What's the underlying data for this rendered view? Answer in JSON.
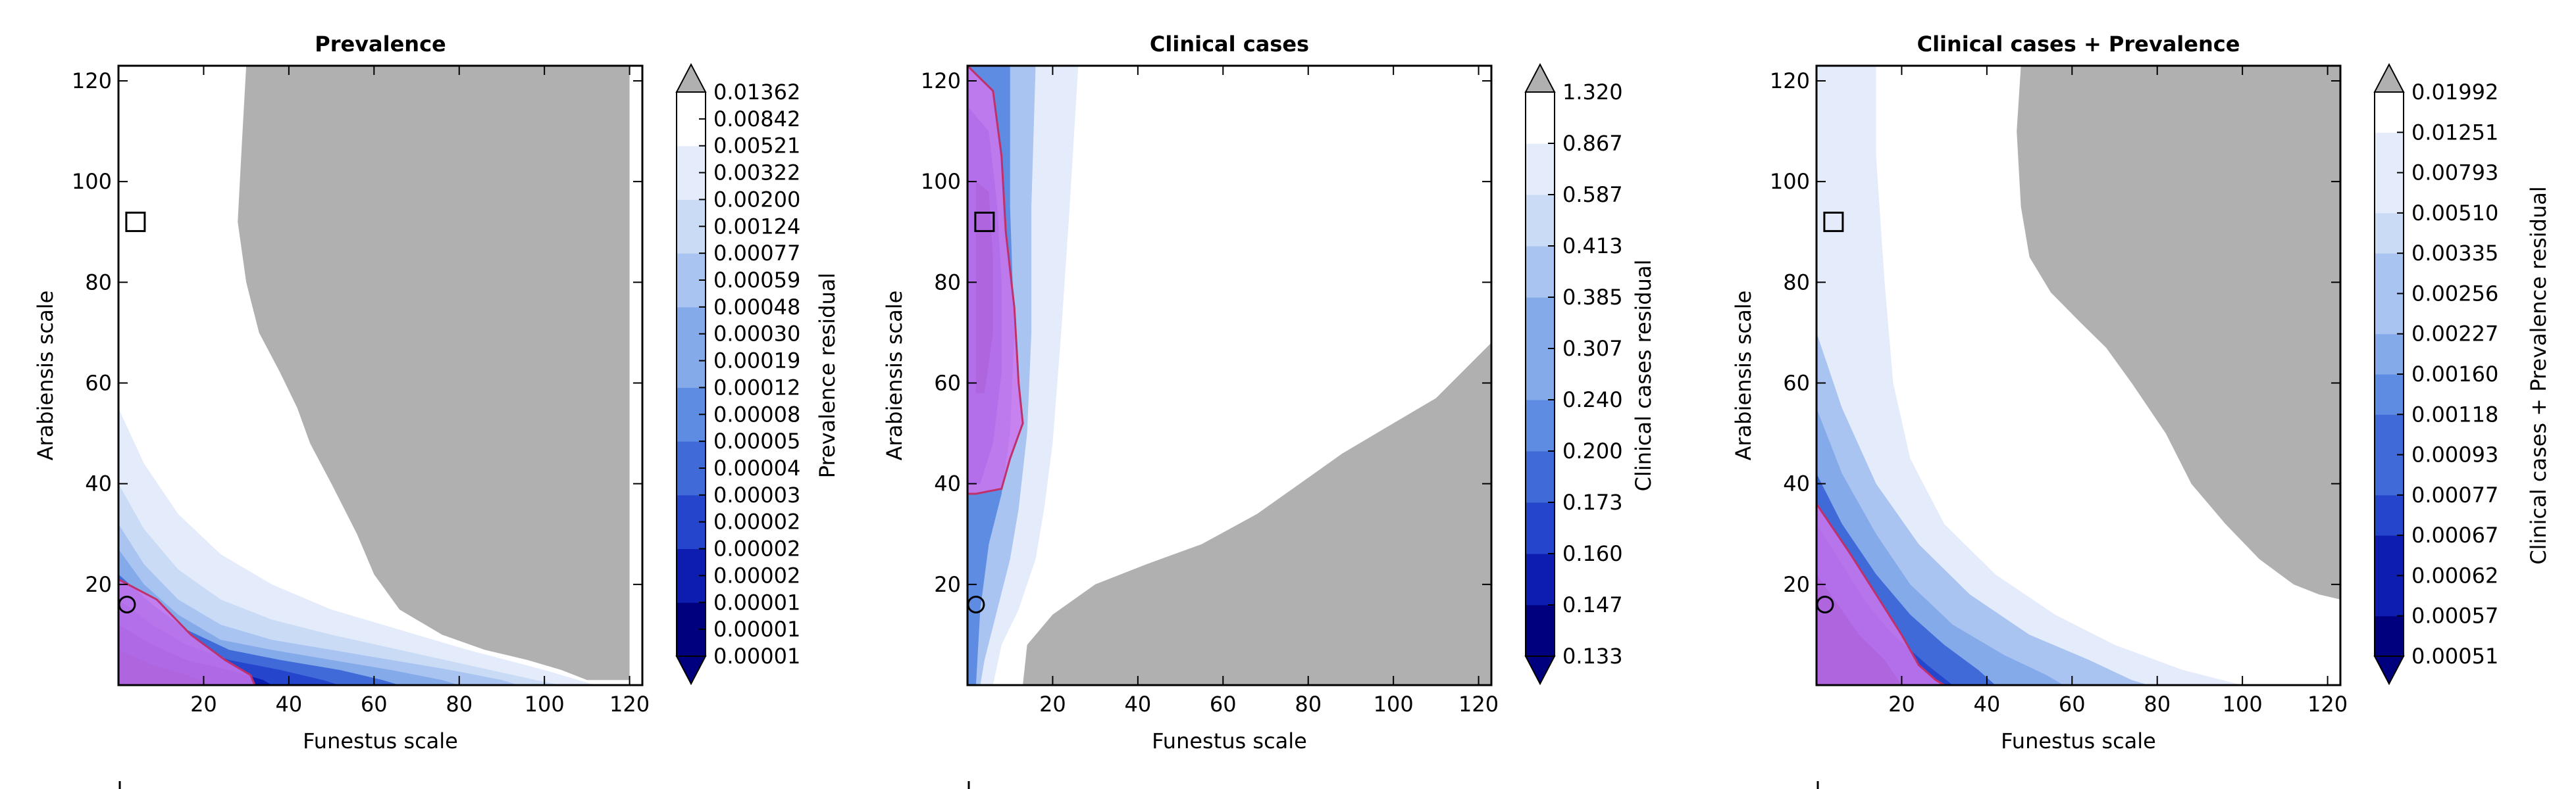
{
  "chart_data": [
    {
      "type": "contour",
      "title": "Prevalence",
      "xlabel": "Funestus scale",
      "ylabel": "Arabiensis scale",
      "xlim": [
        0,
        123
      ],
      "ylim": [
        0,
        123
      ],
      "x_ticks": [
        20,
        40,
        60,
        80,
        100,
        120
      ],
      "y_ticks": [
        20,
        40,
        60,
        80,
        100,
        120
      ],
      "colorbar_label": "Prevalence residual",
      "colorbar_levels": [
        "0.00001",
        "0.00001",
        "0.00001",
        "0.00002",
        "0.00002",
        "0.00002",
        "0.00003",
        "0.00004",
        "0.00005",
        "0.00008",
        "0.00012",
        "0.00019",
        "0.00030",
        "0.00048",
        "0.00059",
        "0.00077",
        "0.00124",
        "0.00200",
        "0.00322",
        "0.00521",
        "0.00842",
        "0.01362"
      ],
      "square_marker": [
        4,
        92
      ],
      "circle_marker": [
        2,
        16
      ],
      "grey_boundary": [
        [
          120,
          123
        ],
        [
          30,
          123
        ],
        [
          29,
          108
        ],
        [
          28,
          92
        ],
        [
          30,
          80
        ],
        [
          33,
          70
        ],
        [
          38,
          62
        ],
        [
          42,
          55
        ],
        [
          45,
          48
        ],
        [
          50,
          40
        ],
        [
          56,
          30
        ],
        [
          60,
          22
        ],
        [
          66,
          15
        ],
        [
          76,
          10
        ],
        [
          86,
          7
        ],
        [
          96,
          5
        ],
        [
          104,
          3
        ],
        [
          110,
          1
        ],
        [
          120,
          1
        ]
      ],
      "purple_boundary": [
        [
          0,
          21
        ],
        [
          9,
          17
        ],
        [
          17,
          10
        ],
        [
          25,
          5
        ],
        [
          31,
          2
        ],
        [
          32,
          0
        ],
        [
          0,
          0
        ]
      ],
      "fill_bands": [
        [
          [
            0,
            55
          ],
          [
            6,
            44
          ],
          [
            14,
            34
          ],
          [
            24,
            26
          ],
          [
            36,
            20
          ],
          [
            50,
            15
          ],
          [
            66,
            11
          ],
          [
            82,
            7
          ],
          [
            100,
            3
          ],
          [
            112,
            0
          ],
          [
            0,
            0
          ]
        ],
        [
          [
            0,
            40
          ],
          [
            6,
            31
          ],
          [
            14,
            23
          ],
          [
            24,
            17
          ],
          [
            36,
            13
          ],
          [
            50,
            10
          ],
          [
            66,
            7
          ],
          [
            82,
            4
          ],
          [
            98,
            1
          ],
          [
            104,
            0
          ],
          [
            0,
            0
          ]
        ],
        [
          [
            0,
            32
          ],
          [
            6,
            24
          ],
          [
            14,
            17
          ],
          [
            24,
            12
          ],
          [
            36,
            9
          ],
          [
            50,
            7
          ],
          [
            64,
            5
          ],
          [
            78,
            3
          ],
          [
            90,
            1
          ],
          [
            94,
            0
          ],
          [
            0,
            0
          ]
        ],
        [
          [
            0,
            27
          ],
          [
            6,
            20
          ],
          [
            14,
            14
          ],
          [
            24,
            9
          ],
          [
            36,
            7
          ],
          [
            50,
            5
          ],
          [
            64,
            3
          ],
          [
            76,
            1
          ],
          [
            80,
            0
          ],
          [
            0,
            0
          ]
        ],
        [
          [
            0,
            22
          ],
          [
            8,
            16
          ],
          [
            16,
            11
          ],
          [
            26,
            7
          ],
          [
            38,
            5
          ],
          [
            52,
            3
          ],
          [
            62,
            1
          ],
          [
            66,
            0
          ],
          [
            0,
            0
          ]
        ],
        [
          [
            0,
            17
          ],
          [
            8,
            12
          ],
          [
            16,
            8
          ],
          [
            26,
            5
          ],
          [
            38,
            3
          ],
          [
            48,
            1
          ],
          [
            52,
            0
          ],
          [
            0,
            0
          ]
        ],
        [
          [
            0,
            12
          ],
          [
            8,
            8
          ],
          [
            16,
            5
          ],
          [
            26,
            3
          ],
          [
            34,
            1
          ],
          [
            36,
            0
          ],
          [
            0,
            0
          ]
        ],
        [
          [
            0,
            7
          ],
          [
            8,
            4
          ],
          [
            16,
            2
          ],
          [
            22,
            0
          ],
          [
            0,
            0
          ]
        ]
      ]
    },
    {
      "type": "contour",
      "title": "Clinical cases",
      "xlabel": "Funestus scale",
      "ylabel": "Arabiensis scale",
      "xlim": [
        0,
        123
      ],
      "ylim": [
        0,
        123
      ],
      "x_ticks": [
        20,
        40,
        60,
        80,
        100,
        120
      ],
      "y_ticks": [
        20,
        40,
        60,
        80,
        100,
        120
      ],
      "colorbar_label": "Clinical cases residual",
      "colorbar_levels": [
        "0.133",
        "0.147",
        "0.160",
        "0.173",
        "0.200",
        "0.240",
        "0.307",
        "0.385",
        "0.413",
        "0.587",
        "0.867",
        "1.320"
      ],
      "square_marker": [
        4,
        92
      ],
      "circle_marker": [
        2,
        16
      ],
      "grey_boundary": [
        [
          13,
          0
        ],
        [
          14,
          8
        ],
        [
          20,
          14
        ],
        [
          30,
          20
        ],
        [
          42,
          24
        ],
        [
          55,
          28
        ],
        [
          68,
          34
        ],
        [
          78,
          40
        ],
        [
          88,
          46
        ],
        [
          98,
          51
        ],
        [
          110,
          57
        ],
        [
          123,
          68
        ],
        [
          123,
          0
        ]
      ],
      "purple_boundary": [
        [
          0,
          123
        ],
        [
          6,
          118
        ],
        [
          8,
          105
        ],
        [
          9,
          90
        ],
        [
          11,
          75
        ],
        [
          12,
          60
        ],
        [
          13,
          52
        ],
        [
          10,
          45
        ],
        [
          8,
          39
        ],
        [
          2,
          38
        ],
        [
          0,
          38
        ]
      ],
      "fill_bands": [
        [
          [
            0,
            123
          ],
          [
            26,
            123
          ],
          [
            24,
            95
          ],
          [
            22,
            70
          ],
          [
            20,
            48
          ],
          [
            18,
            35
          ],
          [
            16,
            25
          ],
          [
            12,
            15
          ],
          [
            8,
            8
          ],
          [
            6,
            0
          ],
          [
            0,
            0
          ]
        ],
        [
          [
            0,
            123
          ],
          [
            16,
            123
          ],
          [
            15,
            95
          ],
          [
            15,
            70
          ],
          [
            14,
            50
          ],
          [
            12,
            35
          ],
          [
            10,
            25
          ],
          [
            7,
            15
          ],
          [
            4,
            5
          ],
          [
            3,
            0
          ],
          [
            0,
            0
          ]
        ],
        [
          [
            0,
            123
          ],
          [
            10,
            123
          ],
          [
            10,
            95
          ],
          [
            11,
            70
          ],
          [
            10,
            50
          ],
          [
            8,
            38
          ],
          [
            5,
            28
          ],
          [
            3,
            15
          ],
          [
            2,
            0
          ],
          [
            0,
            0
          ]
        ],
        [
          [
            0,
            115
          ],
          [
            5,
            110
          ],
          [
            7,
            95
          ],
          [
            8,
            80
          ],
          [
            8,
            62
          ],
          [
            6,
            48
          ],
          [
            3,
            40
          ],
          [
            0,
            40
          ]
        ],
        [
          [
            2,
            100
          ],
          [
            5,
            98
          ],
          [
            6,
            85
          ],
          [
            6,
            70
          ],
          [
            4,
            58
          ],
          [
            2,
            58
          ]
        ]
      ]
    },
    {
      "type": "contour",
      "title": "Clinical cases + Prevalence",
      "xlabel": "Funestus scale",
      "ylabel": "Arabiensis scale",
      "xlim": [
        0,
        123
      ],
      "ylim": [
        0,
        123
      ],
      "x_ticks": [
        20,
        40,
        60,
        80,
        100,
        120
      ],
      "y_ticks": [
        20,
        40,
        60,
        80,
        100,
        120
      ],
      "colorbar_label": "Clinical cases + Prevalence residual",
      "colorbar_levels": [
        "0.00051",
        "0.00057",
        "0.00062",
        "0.00067",
        "0.00077",
        "0.00093",
        "0.00118",
        "0.00160",
        "0.00227",
        "0.00256",
        "0.00335",
        "0.00510",
        "0.00793",
        "0.01251",
        "0.01992"
      ],
      "square_marker": [
        4,
        92
      ],
      "circle_marker": [
        2,
        16
      ],
      "grey_boundary": [
        [
          123,
          123
        ],
        [
          48,
          123
        ],
        [
          47,
          110
        ],
        [
          48,
          95
        ],
        [
          50,
          85
        ],
        [
          55,
          78
        ],
        [
          62,
          72
        ],
        [
          68,
          67
        ],
        [
          74,
          60
        ],
        [
          82,
          50
        ],
        [
          88,
          40
        ],
        [
          96,
          32
        ],
        [
          104,
          25
        ],
        [
          112,
          20
        ],
        [
          118,
          18
        ],
        [
          123,
          17
        ]
      ],
      "purple_boundary": [
        [
          0,
          36
        ],
        [
          8,
          26
        ],
        [
          14,
          18
        ],
        [
          20,
          10
        ],
        [
          24,
          4
        ],
        [
          28,
          1
        ],
        [
          30,
          0
        ],
        [
          0,
          0
        ]
      ],
      "fill_bands": [
        [
          [
            0,
            123
          ],
          [
            14,
            123
          ],
          [
            14,
            105
          ],
          [
            16,
            80
          ],
          [
            18,
            60
          ],
          [
            22,
            45
          ],
          [
            30,
            32
          ],
          [
            42,
            22
          ],
          [
            56,
            14
          ],
          [
            70,
            8
          ],
          [
            86,
            3
          ],
          [
            100,
            0
          ],
          [
            0,
            0
          ]
        ],
        [
          [
            0,
            70
          ],
          [
            6,
            55
          ],
          [
            14,
            40
          ],
          [
            24,
            28
          ],
          [
            36,
            18
          ],
          [
            50,
            10
          ],
          [
            64,
            5
          ],
          [
            74,
            1
          ],
          [
            78,
            0
          ],
          [
            0,
            0
          ]
        ],
        [
          [
            0,
            55
          ],
          [
            6,
            42
          ],
          [
            14,
            30
          ],
          [
            22,
            20
          ],
          [
            32,
            12
          ],
          [
            44,
            6
          ],
          [
            54,
            2
          ],
          [
            58,
            0
          ],
          [
            0,
            0
          ]
        ],
        [
          [
            0,
            42
          ],
          [
            6,
            32
          ],
          [
            14,
            22
          ],
          [
            22,
            14
          ],
          [
            30,
            8
          ],
          [
            38,
            3
          ],
          [
            42,
            0
          ],
          [
            0,
            0
          ]
        ],
        [
          [
            0,
            32
          ],
          [
            6,
            24
          ],
          [
            12,
            16
          ],
          [
            18,
            10
          ],
          [
            26,
            4
          ],
          [
            32,
            0
          ],
          [
            0,
            0
          ]
        ],
        [
          [
            0,
            22
          ],
          [
            5,
            16
          ],
          [
            10,
            10
          ],
          [
            16,
            5
          ],
          [
            20,
            0
          ],
          [
            0,
            0
          ]
        ]
      ]
    }
  ],
  "colors": {
    "grey_region": "#b0b0b0",
    "purple_region": "#cc77ee",
    "purple_edge": "#c0306a",
    "colormap": [
      "#00007f",
      "#0c1db0",
      "#2545cc",
      "#3f6ad8",
      "#5e8ce2",
      "#85aaea",
      "#a9c4f1",
      "#cadbf6",
      "#e4ecfb",
      "#ffffff"
    ],
    "extend_top": "#b0b0b0",
    "extend_bottom": "#00007f"
  }
}
